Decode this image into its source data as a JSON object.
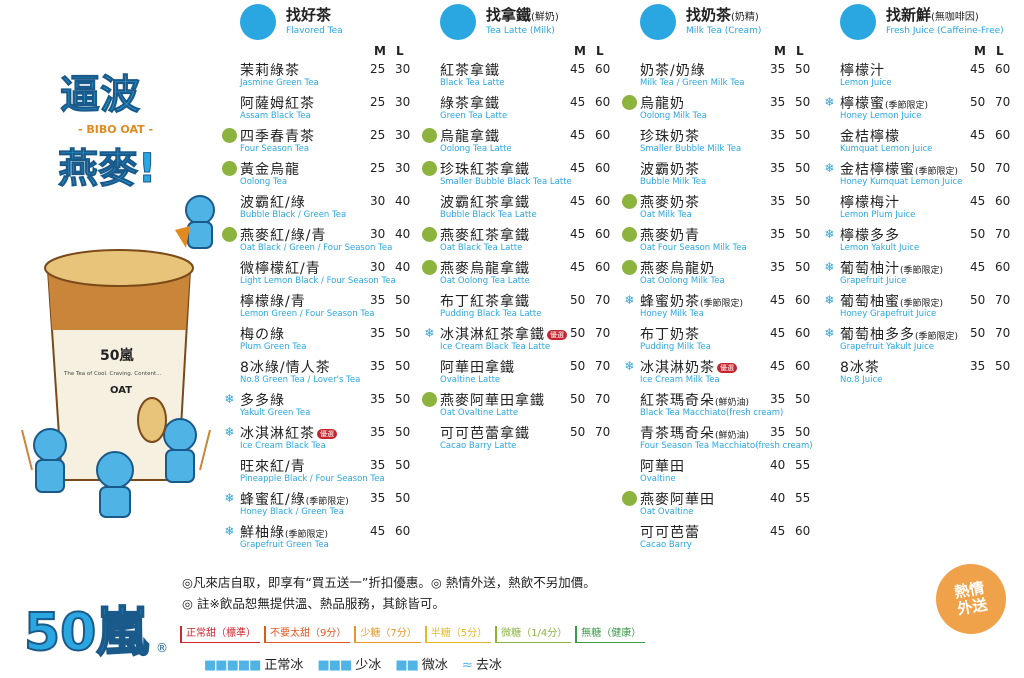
{
  "brand": {
    "slogan_zh": [
      "逼波",
      "燕麥!"
    ],
    "slogan_en": "BIBO OAT",
    "cup_text": "The Tea of Cool. Craving. Content...",
    "cup_brand": "50嵐",
    "cup_sub": "OAT"
  },
  "size_labels": {
    "m": "M",
    "l": "L"
  },
  "columns": [
    {
      "id": "tea",
      "title": "找好茶",
      "title_note": "",
      "subtitle": "Flavored Tea",
      "icon": "tea-cup-icon",
      "items": [
        {
          "zh": "茉莉綠茶",
          "en": "Jasmine Green Tea",
          "m": "25",
          "l": "30",
          "mark": ""
        },
        {
          "zh": "阿薩姆紅茶",
          "en": "Assam Black Tea",
          "m": "25",
          "l": "30",
          "mark": ""
        },
        {
          "zh": "四季春青茶",
          "en": "Four Season Tea",
          "m": "25",
          "l": "30",
          "mark": "grain"
        },
        {
          "zh": "黃金烏龍",
          "en": "Oolong Tea",
          "m": "25",
          "l": "30",
          "mark": "grain"
        },
        {
          "zh": "波霸紅/綠",
          "en": "Bubble Black / Green Tea",
          "m": "30",
          "l": "40",
          "mark": ""
        },
        {
          "zh": "燕麥紅/綠/青",
          "en": "Oat Black / Green / Four Season Tea",
          "m": "30",
          "l": "40",
          "mark": "grain"
        },
        {
          "zh": "微檸檬紅/青",
          "en": "Light Lemon Black / Four Season Tea",
          "m": "30",
          "l": "40",
          "mark": ""
        },
        {
          "zh": "檸檬綠/青",
          "en": "Lemon Green / Four Season Tea",
          "m": "35",
          "l": "50",
          "mark": ""
        },
        {
          "zh": "梅の綠",
          "en": "Plum Green Tea",
          "m": "35",
          "l": "50",
          "mark": ""
        },
        {
          "zh": "8冰綠/情人茶",
          "en": "No.8 Green Tea / Lover's Tea",
          "m": "35",
          "l": "50",
          "mark": ""
        },
        {
          "zh": "多多綠",
          "en": "Yakult Green Tea",
          "m": "35",
          "l": "50",
          "mark": "snow"
        },
        {
          "zh": "冰淇淋紅茶",
          "en": "Ice Cream Black Tea",
          "m": "35",
          "l": "50",
          "mark": "snow",
          "hot": "優選"
        },
        {
          "zh": "旺來紅/青",
          "en": "Pineapple Black / Four Season Tea",
          "m": "35",
          "l": "50",
          "mark": ""
        },
        {
          "zh": "蜂蜜紅/綠",
          "zh_note": "(季節限定)",
          "en": "Honey Black / Green Tea",
          "m": "35",
          "l": "50",
          "mark": "snow"
        },
        {
          "zh": "鮮柚綠",
          "zh_note": "(季節限定)",
          "en": "Grapefruit Green Tea",
          "m": "45",
          "l": "60",
          "mark": "snow"
        }
      ]
    },
    {
      "id": "latte",
      "title": "找拿鐵",
      "title_note": "(鮮奶)",
      "subtitle": "Tea Latte (Milk)",
      "icon": "milk-glass-icon",
      "items": [
        {
          "zh": "紅茶拿鐵",
          "en": "Black Tea Latte",
          "m": "45",
          "l": "60",
          "mark": ""
        },
        {
          "zh": "綠茶拿鐵",
          "en": "Green Tea Latte",
          "m": "45",
          "l": "60",
          "mark": ""
        },
        {
          "zh": "烏龍拿鐵",
          "en": "Oolong Tea Latte",
          "m": "45",
          "l": "60",
          "mark": "grain"
        },
        {
          "zh": "珍珠紅茶拿鐵",
          "en": "Smaller Bubble Black Tea Latte",
          "m": "45",
          "l": "60",
          "mark": "grain"
        },
        {
          "zh": "波霸紅茶拿鐵",
          "en": "Bubble Black Tea Latte",
          "m": "45",
          "l": "60",
          "mark": ""
        },
        {
          "zh": "燕麥紅茶拿鐵",
          "en": "Oat Black Tea Latte",
          "m": "45",
          "l": "60",
          "mark": "grain"
        },
        {
          "zh": "燕麥烏龍拿鐵",
          "en": "Oat Oolong Tea Latte",
          "m": "45",
          "l": "60",
          "mark": "grain"
        },
        {
          "zh": "布丁紅茶拿鐵",
          "en": "Pudding Black Tea Latte",
          "m": "50",
          "l": "70",
          "mark": ""
        },
        {
          "zh": "冰淇淋紅茶拿鐵",
          "en": "Ice Cream Black Tea Latte",
          "m": "50",
          "l": "70",
          "mark": "snow",
          "hot": "優選"
        },
        {
          "zh": "阿華田拿鐵",
          "en": "Ovaltine Latte",
          "m": "50",
          "l": "70",
          "mark": ""
        },
        {
          "zh": "燕麥阿華田拿鐵",
          "en": "Oat Ovaltine Latte",
          "m": "50",
          "l": "70",
          "mark": "grain"
        },
        {
          "zh": "可可芭蕾拿鐵",
          "en": "Cacao Barry Latte",
          "m": "50",
          "l": "70",
          "mark": ""
        }
      ]
    },
    {
      "id": "milk",
      "title": "找奶茶",
      "title_note": "(奶精)",
      "subtitle": "Milk Tea (Cream)",
      "icon": "milk-carton-icon",
      "items": [
        {
          "zh": "奶茶/奶綠",
          "en": "Milk Tea / Green Milk Tea",
          "m": "35",
          "l": "50",
          "mark": ""
        },
        {
          "zh": "烏龍奶",
          "en": "Oolong Milk Tea",
          "m": "35",
          "l": "50",
          "mark": "grain"
        },
        {
          "zh": "珍珠奶茶",
          "en": "Smaller Bubble Milk Tea",
          "m": "35",
          "l": "50",
          "mark": ""
        },
        {
          "zh": "波霸奶茶",
          "en": "Bubble Milk Tea",
          "m": "35",
          "l": "50",
          "mark": ""
        },
        {
          "zh": "燕麥奶茶",
          "en": "Oat Milk Tea",
          "m": "35",
          "l": "50",
          "mark": "grain"
        },
        {
          "zh": "燕麥奶青",
          "en": "Oat Four Season Milk Tea",
          "m": "35",
          "l": "50",
          "mark": "grain"
        },
        {
          "zh": "燕麥烏龍奶",
          "en": "Oat Oolong Milk Tea",
          "m": "35",
          "l": "50",
          "mark": "grain"
        },
        {
          "zh": "蜂蜜奶茶",
          "zh_note": "(季節限定)",
          "en": "Honey Milk Tea",
          "m": "45",
          "l": "60",
          "mark": "snow"
        },
        {
          "zh": "布丁奶茶",
          "en": "Pudding Milk Tea",
          "m": "45",
          "l": "60",
          "mark": ""
        },
        {
          "zh": "冰淇淋奶茶",
          "en": "Ice Cream Milk Tea",
          "m": "45",
          "l": "60",
          "mark": "snow",
          "hot": "優選"
        },
        {
          "zh": "紅茶瑪奇朵",
          "zh_note": "(鮮奶油)",
          "en": "Black Tea Macchiato(fresh cream)",
          "m": "35",
          "l": "50",
          "mark": ""
        },
        {
          "zh": "青茶瑪奇朵",
          "zh_note": "(鮮奶油)",
          "en": "Four Season Tea Macchiato(fresh cream)",
          "m": "35",
          "l": "50",
          "mark": ""
        },
        {
          "zh": "阿華田",
          "en": "Ovaltine",
          "m": "40",
          "l": "55",
          "mark": ""
        },
        {
          "zh": "燕麥阿華田",
          "en": "Oat Ovaltine",
          "m": "40",
          "l": "55",
          "mark": "grain"
        },
        {
          "zh": "可可芭蕾",
          "en": "Cacao Barry",
          "m": "45",
          "l": "60",
          "mark": ""
        }
      ]
    },
    {
      "id": "juice",
      "title": "找新鮮",
      "title_note": "(無咖啡因)",
      "subtitle": "Fresh Juice (Caffeine-Free)",
      "icon": "lemon-glass-icon",
      "items": [
        {
          "zh": "檸檬汁",
          "en": "Lemon Juice",
          "m": "45",
          "l": "60",
          "mark": ""
        },
        {
          "zh": "檸檬蜜",
          "zh_note": "(季節限定)",
          "en": "Honey Lemon Juice",
          "m": "50",
          "l": "70",
          "mark": "snow"
        },
        {
          "zh": "金桔檸檬",
          "en": "Kumquat Lemon Juice",
          "m": "45",
          "l": "60",
          "mark": ""
        },
        {
          "zh": "金桔檸檬蜜",
          "zh_note": "(季節限定)",
          "en": "Honey Kumquat Lemon Juice",
          "m": "50",
          "l": "70",
          "mark": "snow"
        },
        {
          "zh": "檸檬梅汁",
          "en": "Lemon Plum Juice",
          "m": "45",
          "l": "60",
          "mark": ""
        },
        {
          "zh": "檸檬多多",
          "en": "Lemon Yakult Juice",
          "m": "50",
          "l": "70",
          "mark": "snow"
        },
        {
          "zh": "葡萄柚汁",
          "zh_note": "(季節限定)",
          "en": "Grapefruit Juice",
          "m": "45",
          "l": "60",
          "mark": "snow"
        },
        {
          "zh": "葡萄柚蜜",
          "zh_note": "(季節限定)",
          "en": "Honey Grapefruit Juice",
          "m": "50",
          "l": "70",
          "mark": "snow"
        },
        {
          "zh": "葡萄柚多多",
          "zh_note": "(季節限定)",
          "en": "Grapefruit Yakult Juice",
          "m": "50",
          "l": "70",
          "mark": "snow"
        },
        {
          "zh": "8冰茶",
          "en": "No.8 Juice",
          "m": "35",
          "l": "50",
          "mark": ""
        }
      ]
    }
  ],
  "notes": {
    "line1": "◎凡來店自取，即享有“買五送一”折扣優惠。◎ 熱情外送，熱飲不另加價。",
    "line2": "◎ 註※飲品恕無提供溫、熱品服務，其餘皆可。"
  },
  "sugar_levels": [
    {
      "label": "正常甜（標準）",
      "color": "#d0262f"
    },
    {
      "label": "不要太甜（9分）",
      "color": "#e0571f"
    },
    {
      "label": "少糖（7分）",
      "color": "#e8962a"
    },
    {
      "label": "半糖（5分）",
      "color": "#e6b923"
    },
    {
      "label": "微糖（1/4分）",
      "color": "#8bb33e"
    },
    {
      "label": "無糖（健康）",
      "color": "#3a9a4a"
    }
  ],
  "ice_levels": [
    {
      "label": "正常冰",
      "cubes": "■■■■■"
    },
    {
      "label": "少冰",
      "cubes": "■■■"
    },
    {
      "label": "微冰",
      "cubes": "■■"
    },
    {
      "label": "去冰",
      "cubes": "≈"
    }
  ],
  "delivery_badge": [
    "熱情",
    "外送"
  ],
  "logo_text": "50嵐",
  "colors": {
    "accent": "#2aa7e0",
    "grain": "#8bb33e",
    "hot": "#c3262f",
    "badge": "#f0a24a"
  }
}
